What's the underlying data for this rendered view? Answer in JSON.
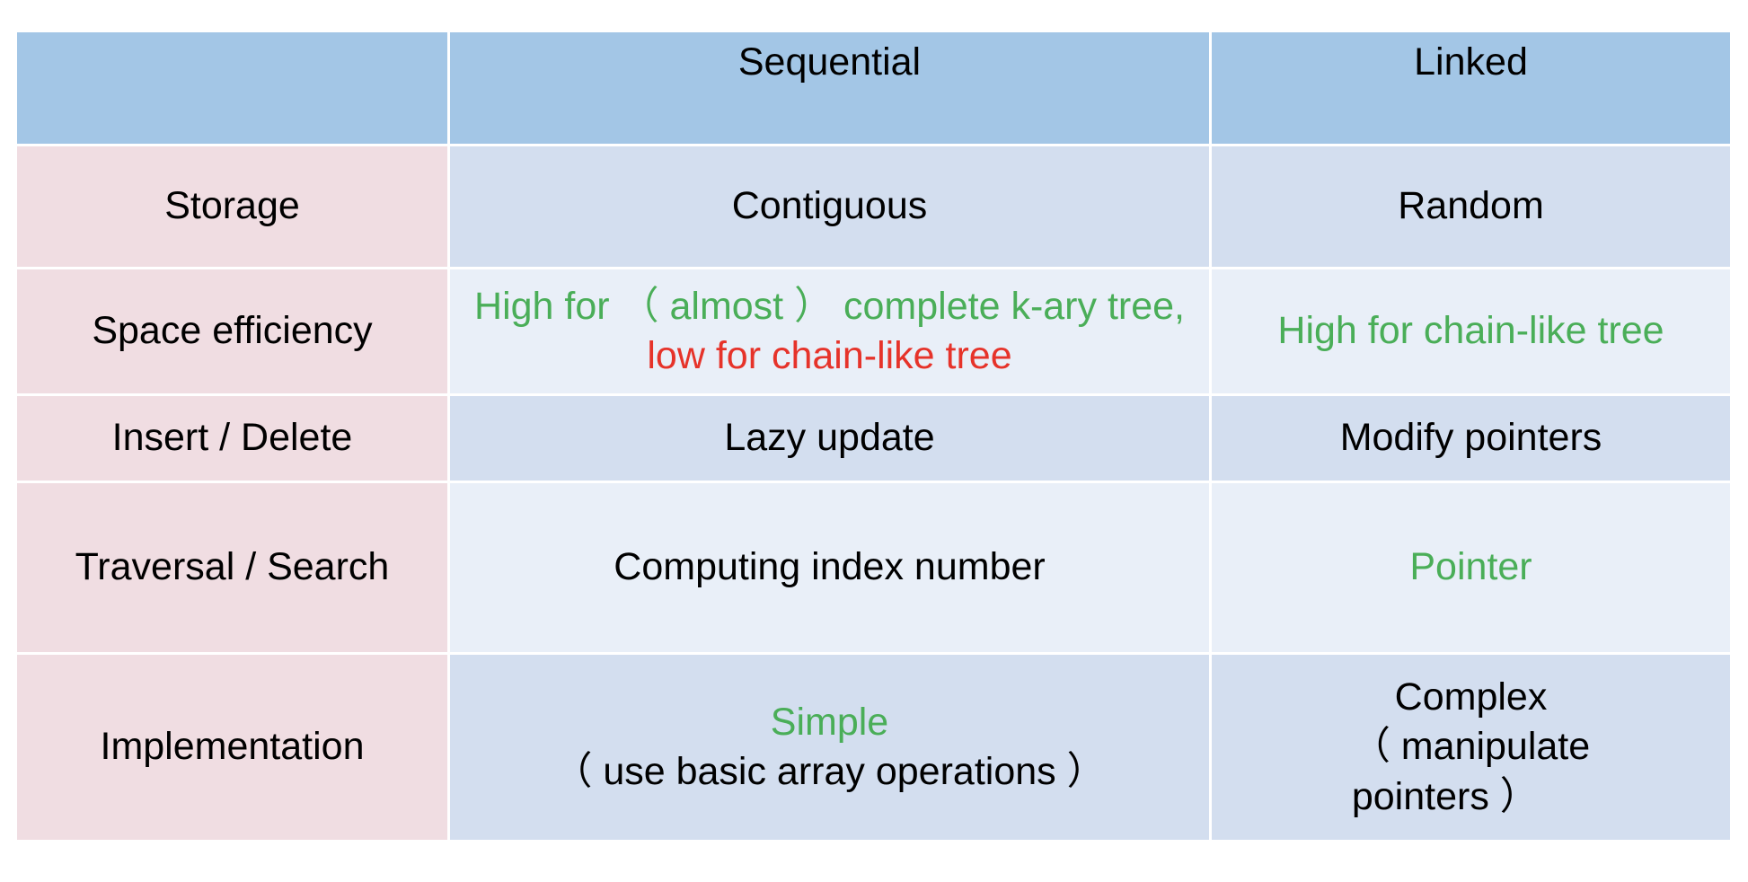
{
  "table": {
    "headers": [
      "",
      "Sequential",
      "Linked"
    ],
    "rows": [
      {
        "label": "Storage",
        "sequential": "Contiguous",
        "linked": "Random"
      },
      {
        "label": "Space efficiency",
        "sequential": {
          "part1": "High for （ almost ） complete k-ary tree,",
          "part2": "low for chain-like tree"
        },
        "linked": "High for chain-like tree"
      },
      {
        "label": "Insert / Delete",
        "sequential": "Lazy update",
        "linked": "Modify pointers"
      },
      {
        "label": "Traversal / Search",
        "sequential": "Computing index number",
        "linked": "Pointer"
      },
      {
        "label": "Implementation",
        "sequential": {
          "line1": "Simple",
          "line2": "（ use basic array operations ）"
        },
        "linked": {
          "line1": "Complex",
          "line2": "（ manipulate",
          "line3": "pointers ）"
        }
      }
    ]
  },
  "colors": {
    "header_bg": "#a3c6e6",
    "label_bg": "#f0dde2",
    "row_dark_bg": "#d3deef",
    "row_light_bg": "#e9eff8",
    "positive_text": "#4aae58",
    "negative_text": "#e6332a"
  }
}
